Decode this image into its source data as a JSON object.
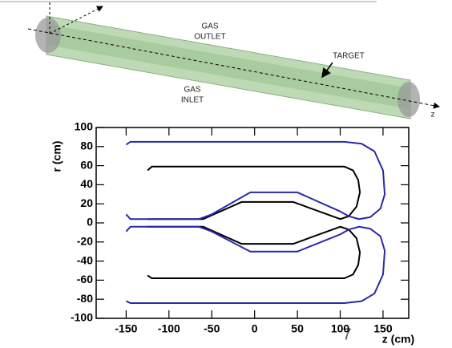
{
  "diagram": {
    "labels": [
      "GAS",
      "OUTLET",
      "TARGET",
      "GAS",
      "INLET",
      "z"
    ]
  },
  "page_number": "7",
  "chart_data": {
    "type": "line",
    "xlabel": "z (cm)",
    "ylabel": "r (cm)",
    "xlim": [
      -185,
      180
    ],
    "ylim": [
      -100,
      100
    ],
    "xticks": [
      -150,
      -100,
      -50,
      0,
      50,
      100,
      150
    ],
    "yticks": [
      -100,
      -80,
      -60,
      -40,
      -20,
      0,
      20,
      40,
      60,
      80,
      100
    ],
    "series": [
      {
        "color": "#000000",
        "x": [
          -125,
          -120,
          105,
          115,
          121,
          123,
          119,
          110,
          100,
          45,
          -15,
          -60,
          -125
        ],
        "values": [
          55,
          59,
          59,
          55,
          45,
          32,
          17,
          7,
          4,
          22,
          22,
          4,
          4
        ]
      },
      {
        "color": "#000000",
        "x": [
          -125,
          -120,
          105,
          115,
          121,
          123,
          119,
          110,
          100,
          45,
          -15,
          -60,
          -125
        ],
        "values": [
          -55,
          -58,
          -58,
          -54,
          -44,
          -31,
          -16,
          -7,
          -4,
          -22,
          -22,
          -4,
          -4
        ]
      },
      {
        "color": "#2a2aa8",
        "x": [
          -150,
          -145,
          105,
          125,
          140,
          150,
          152,
          147,
          135,
          122,
          110,
          100,
          50,
          -5,
          -50,
          -65,
          -145,
          -150
        ],
        "values": [
          82,
          85,
          85,
          83,
          75,
          55,
          30,
          15,
          6,
          4,
          7,
          12,
          32,
          32,
          9,
          4,
          4,
          9
        ]
      },
      {
        "color": "#2a2aa8",
        "x": [
          -150,
          -145,
          105,
          125,
          140,
          150,
          152,
          147,
          135,
          122,
          110,
          100,
          50,
          -5,
          -50,
          -65,
          -145,
          -150
        ],
        "values": [
          -82,
          -84,
          -84,
          -82,
          -74,
          -54,
          -29,
          -14,
          -6,
          -4,
          -7,
          -12,
          -30,
          -30,
          -9,
          -4,
          -4,
          -9
        ]
      }
    ]
  }
}
